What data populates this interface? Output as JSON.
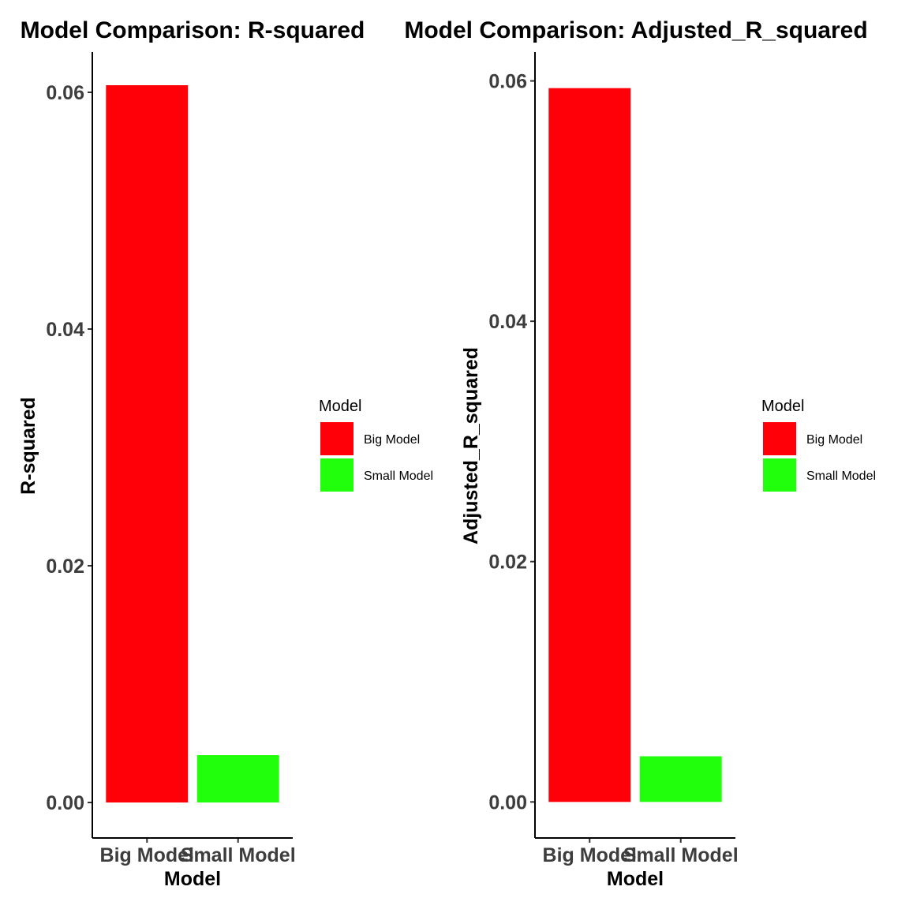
{
  "chart_data": [
    {
      "type": "bar",
      "title": "Model Comparison: R-squared",
      "xlabel": "Model",
      "ylabel": "R-squared",
      "categories": [
        "Big Model",
        "Small Model"
      ],
      "values": [
        0.0606,
        0.004
      ],
      "colors": [
        "#ff0008",
        "#22ff0d"
      ],
      "yticks": [
        "0.00",
        "0.02",
        "0.04",
        "0.06"
      ],
      "ylim": [
        -0.003,
        0.0634
      ],
      "grid": false,
      "legend": {
        "title": "Model",
        "placement": "right",
        "items": [
          "Big Model",
          "Small Model"
        ]
      }
    },
    {
      "type": "bar",
      "title": "Model Comparison: Adjusted_R_squared",
      "xlabel": "Model",
      "ylabel": "Adjusted_R_squared",
      "categories": [
        "Big Model",
        "Small Model"
      ],
      "values": [
        0.0594,
        0.0038
      ],
      "colors": [
        "#ff0008",
        "#22ff0d"
      ],
      "yticks": [
        "0.00",
        "0.02",
        "0.04",
        "0.06"
      ],
      "ylim": [
        -0.003,
        0.0624
      ],
      "grid": false,
      "legend": {
        "title": "Model",
        "placement": "right",
        "items": [
          "Big Model",
          "Small Model"
        ]
      }
    }
  ]
}
